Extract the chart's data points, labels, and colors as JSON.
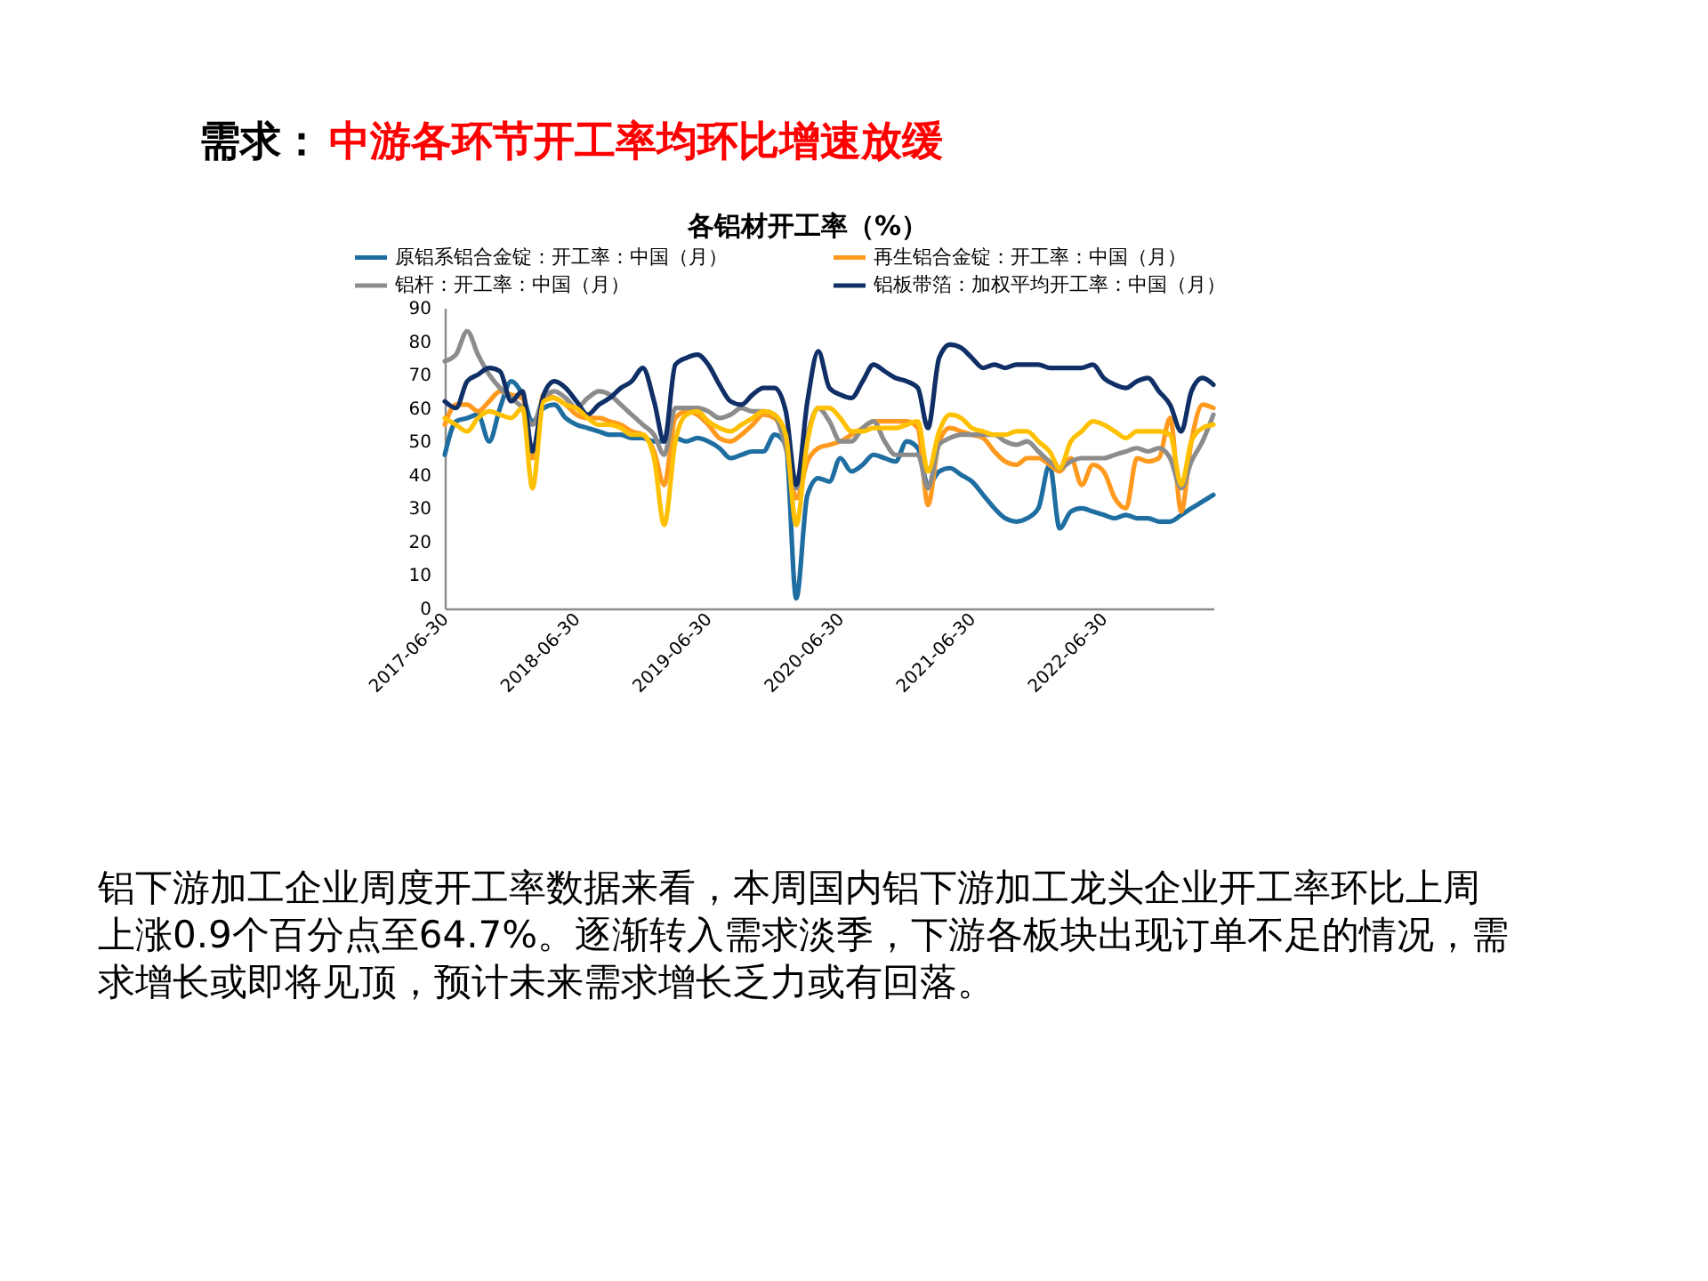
{
  "chart_data": {
    "type": "line",
    "title": "各铝材开工率（%）",
    "annotations": [
      "需求：",
      "中游各环节开工率均环比增速放缓",
      "铝下游加工企业周度开工率数据来看，本周国内铝下游加工龙头企业开工率环比上周上涨0.9个百分点至64.7%。逐渐转入需求淡季，下游各板块出现订单不足的情况，需求增长或即将见顶，预计未来需求增长乏力或有回落。"
    ],
    "x": [
      "2017-06-30",
      "2017-07-31",
      "2017-08-31",
      "2017-09-30",
      "2017-10-31",
      "2017-11-30",
      "2017-12-31",
      "2018-01-31",
      "2018-02-28",
      "2018-03-31",
      "2018-04-30",
      "2018-05-31",
      "2018-06-30",
      "2018-07-31",
      "2018-08-31",
      "2018-09-30",
      "2018-10-31",
      "2018-11-30",
      "2018-12-31",
      "2019-01-31",
      "2019-02-28",
      "2019-03-31",
      "2019-04-30",
      "2019-05-31",
      "2019-06-30",
      "2019-07-31",
      "2019-08-31",
      "2019-09-30",
      "2019-10-31",
      "2019-11-30",
      "2019-12-31",
      "2020-01-31",
      "2020-02-29",
      "2020-03-31",
      "2020-04-30",
      "2020-05-31",
      "2020-06-30",
      "2020-07-31",
      "2020-08-31",
      "2020-09-30",
      "2020-10-31",
      "2020-11-30",
      "2020-12-31",
      "2021-01-31",
      "2021-02-28",
      "2021-03-31",
      "2021-04-30",
      "2021-05-31",
      "2021-06-30",
      "2021-07-31",
      "2021-08-31",
      "2021-09-30",
      "2021-10-31",
      "2021-11-30",
      "2021-12-31",
      "2022-01-31",
      "2022-02-28",
      "2022-03-31",
      "2022-04-30",
      "2022-05-31",
      "2022-06-30",
      "2022-07-31",
      "2022-08-31",
      "2022-09-30",
      "2022-10-31",
      "2022-11-30",
      "2022-12-31",
      "2023-01-31",
      "2023-02-28",
      "2023-03-31",
      "2023-04-30"
    ],
    "xlim": [
      "2017-06-30",
      "2023-04-30"
    ],
    "xticks": [
      "2017-06-30",
      "2018-06-30",
      "2019-06-30",
      "2020-06-30",
      "2021-06-30",
      "2022-06-30"
    ],
    "ylim": [
      0,
      90
    ],
    "yticks": [
      0,
      10,
      20,
      30,
      40,
      50,
      60,
      70,
      80,
      90
    ],
    "grid": false,
    "legend": "top",
    "series": [
      {
        "name": "原铝系铝合金锭：开工率：中国（月）",
        "color": "#1f6ea1",
        "values": [
          46,
          56,
          57,
          58,
          50,
          60,
          68,
          64,
          56,
          60,
          61,
          57,
          55,
          54,
          53,
          52,
          52,
          51,
          51,
          50,
          50,
          51,
          50,
          51,
          50,
          48,
          45,
          46,
          47,
          47,
          52,
          49,
          3,
          34,
          39,
          38,
          45,
          41,
          43,
          46,
          45,
          44,
          50,
          48,
          37,
          41,
          42,
          40,
          38,
          34,
          30,
          27,
          26,
          27,
          30,
          43,
          24,
          29,
          30,
          29,
          28,
          27,
          28,
          27,
          27,
          26,
          26,
          28,
          30,
          32,
          34
        ]
      },
      {
        "name": "再生铝合金锭：开工率：中国（月）",
        "color": "#ff9a1f",
        "values": [
          55,
          61,
          61,
          59,
          62,
          65,
          64,
          63,
          45,
          64,
          63,
          61,
          58,
          57,
          57,
          56,
          55,
          53,
          52,
          47,
          37,
          57,
          59,
          58,
          55,
          51,
          50,
          52,
          55,
          58,
          57,
          49,
          33,
          44,
          48,
          49,
          50,
          52,
          54,
          56,
          56,
          56,
          56,
          54,
          31,
          50,
          54,
          53,
          52,
          51,
          47,
          44,
          43,
          45,
          45,
          43,
          41,
          45,
          37,
          43,
          41,
          33,
          30,
          45,
          44,
          45,
          57,
          29,
          50,
          61,
          60
        ]
      },
      {
        "name": "铝杆：开工率：中国（月）",
        "color": "#8c8c8c",
        "values": [
          74,
          76,
          83,
          76,
          70,
          66,
          63,
          60,
          55,
          63,
          65,
          63,
          60,
          63,
          65,
          64,
          61,
          58,
          55,
          52,
          46,
          60,
          60,
          60,
          59,
          57,
          58,
          60,
          59,
          59,
          58,
          48,
          36,
          52,
          60,
          56,
          50,
          50,
          54,
          56,
          50,
          46,
          46,
          46,
          36,
          49,
          51,
          52,
          52,
          52,
          52,
          50,
          49,
          50,
          47,
          44,
          42,
          44,
          45,
          45,
          45,
          46,
          47,
          48,
          47,
          48,
          45,
          36,
          44,
          50,
          58
        ]
      },
      {
        "name": "铝板带箔：加权平均开工率：中国（月）",
        "color": "#0f2f66",
        "values": [
          62,
          60,
          68,
          70,
          72,
          71,
          62,
          65,
          47,
          64,
          68,
          66,
          62,
          58,
          61,
          63,
          66,
          68,
          72,
          62,
          50,
          73,
          75,
          76,
          73,
          67,
          62,
          61,
          64,
          66,
          66,
          59,
          37,
          62,
          77,
          66,
          64,
          63,
          68,
          73,
          71,
          69,
          68,
          66,
          54,
          75,
          79,
          78,
          75,
          72,
          73,
          72,
          73,
          73,
          73,
          72,
          72,
          72,
          72,
          73,
          69,
          67,
          66,
          68,
          69,
          65,
          61,
          53,
          65,
          69,
          67
        ]
      },
      {
        "color": "#ffc000",
        "values": [
          57,
          55,
          53,
          57,
          59,
          58,
          57,
          60,
          36,
          62,
          63,
          61,
          60,
          57,
          55,
          55,
          54,
          52,
          52,
          45,
          25,
          50,
          58,
          59,
          56,
          54,
          53,
          55,
          57,
          59,
          58,
          52,
          25,
          50,
          60,
          60,
          57,
          53,
          53,
          54,
          54,
          54,
          55,
          56,
          41,
          53,
          58,
          57,
          54,
          53,
          52,
          52,
          53,
          53,
          50,
          47,
          42,
          50,
          53,
          56,
          55,
          53,
          51,
          53,
          53,
          53,
          52,
          37,
          50,
          54,
          55
        ]
      }
    ]
  }
}
